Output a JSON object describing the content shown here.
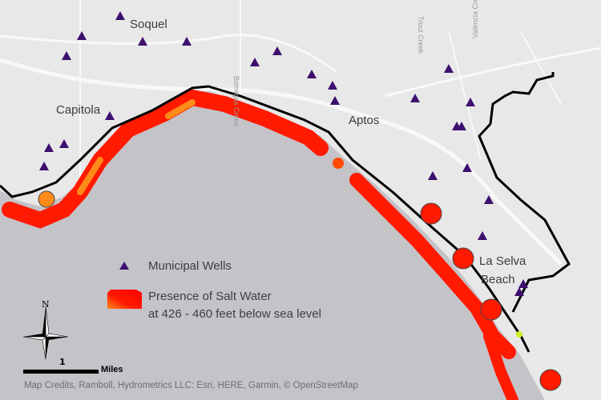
{
  "places": {
    "soquel": "Soquel",
    "capitola": "Capitola",
    "aptos": "Aptos",
    "la_selva_1": "La Selva",
    "la_selva_2": "Beach"
  },
  "creeks": {
    "borregas": "Borregas Creek",
    "trout": "Trout Creek",
    "valencia": "Valencia Creek"
  },
  "legend": {
    "wells_label": "Municipal Wells",
    "salt_label_1": "Presence of Salt Water",
    "salt_label_2": "at 426 - 460 feet below sea level"
  },
  "north_label": "N",
  "scale": {
    "value": "1",
    "unit": "Miles"
  },
  "credits": "Map Credits, Ramboll, Hydrometrics LLC: Esri, HERE, Garmin, © OpenStreetMap",
  "colors": {
    "land": "#e8e8e8",
    "sea": "#c4c3c8",
    "well": "#3d0f6e",
    "salt": "#ff1a00",
    "salt_edge": "#ff8c1a",
    "boundary": "#000000"
  },
  "icons": {
    "well": "triangle-icon",
    "compass": "north-arrow-icon"
  }
}
